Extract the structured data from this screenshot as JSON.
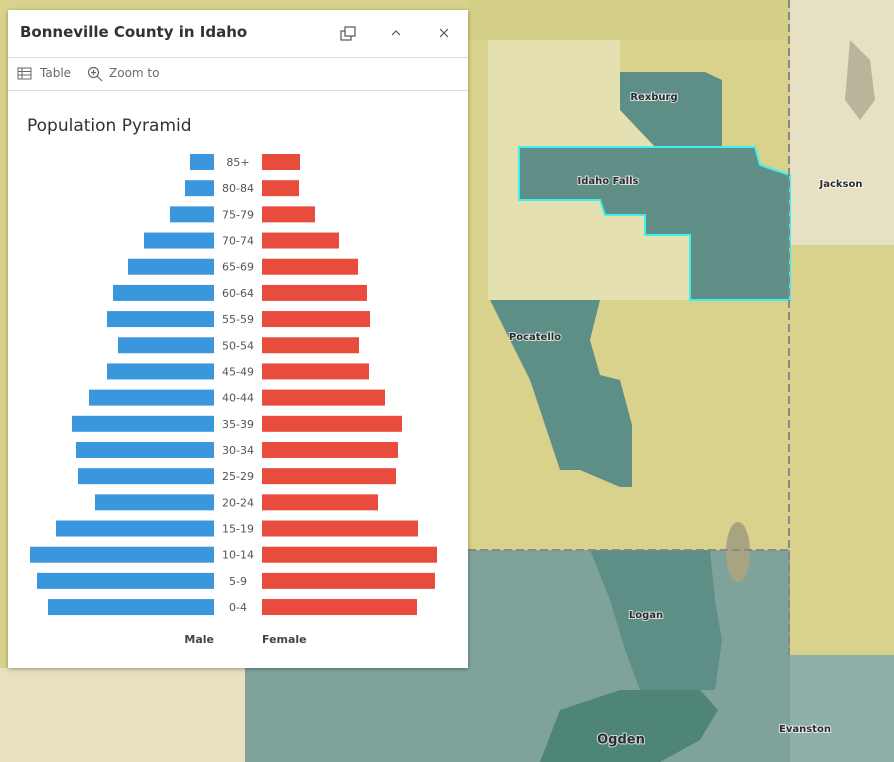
{
  "header": {
    "title": "Bonneville County in Idaho"
  },
  "toolbar": {
    "table": "Table",
    "zoom_to": "Zoom to"
  },
  "map_labels": [
    "Rexburg",
    "Idaho Falls",
    "Jackson",
    "Pocatello",
    "Logan",
    "Ogden",
    "Evanston"
  ],
  "chart_data": {
    "type": "pyramid",
    "title": "Population Pyramid",
    "categories": [
      "85+",
      "80-84",
      "75-79",
      "70-74",
      "65-69",
      "60-64",
      "55-59",
      "50-54",
      "45-49",
      "40-44",
      "35-39",
      "30-34",
      "25-29",
      "20-24",
      "15-19",
      "10-14",
      "5-9",
      "0-4"
    ],
    "series": [
      {
        "name": "Male",
        "color": "#3b97dd",
        "values": [
          24,
          29,
          44,
          70,
          86,
          101,
          107,
          96,
          107,
          125,
          142,
          138,
          136,
          119,
          158,
          184,
          177,
          166
        ]
      },
      {
        "name": "Female",
        "color": "#e84c3d",
        "values": [
          38,
          37,
          53,
          77,
          96,
          105,
          108,
          97,
          107,
          123,
          140,
          136,
          134,
          116,
          156,
          175,
          173,
          155
        ]
      }
    ]
  }
}
